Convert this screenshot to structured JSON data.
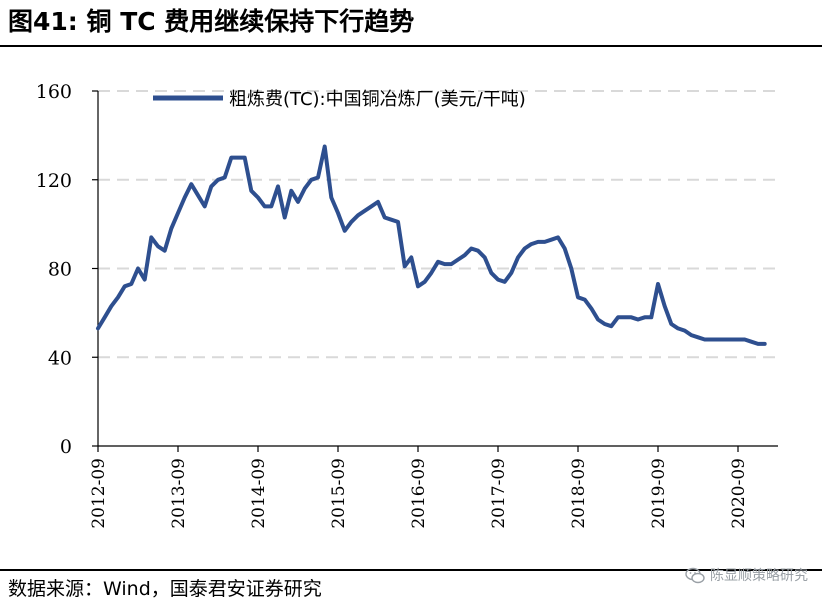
{
  "header": {
    "title": "图41: 铜 TC 费用继续保持下行趋势"
  },
  "footer": {
    "source": "数据来源：Wind，国泰君安证券研究",
    "watermark": "陈显顺策略研究"
  },
  "colors": {
    "series": "#2e4f8f",
    "grid": "#d9d9d9",
    "axis": "#000000"
  },
  "chart_data": {
    "type": "line",
    "title": "",
    "xlabel": "",
    "ylabel": "",
    "ylim": [
      0,
      160
    ],
    "yticks": [
      0,
      40,
      80,
      120,
      160
    ],
    "xticks": [
      "2012-09",
      "2013-09",
      "2014-09",
      "2015-09",
      "2016-09",
      "2017-09",
      "2018-09",
      "2019-09",
      "2020-09"
    ],
    "grid": "horizontal dashed",
    "legend_position": "top",
    "series": [
      {
        "name": "粗炼费(TC):中国铜冶炼厂(美元/干吨)",
        "x": [
          "2012-09",
          "2012-10",
          "2012-11",
          "2012-12",
          "2013-01",
          "2013-02",
          "2013-03",
          "2013-04",
          "2013-05",
          "2013-06",
          "2013-07",
          "2013-08",
          "2013-09",
          "2013-10",
          "2013-11",
          "2013-12",
          "2014-01",
          "2014-02",
          "2014-03",
          "2014-04",
          "2014-05",
          "2014-06",
          "2014-07",
          "2014-08",
          "2014-09",
          "2014-10",
          "2014-11",
          "2014-12",
          "2015-01",
          "2015-02",
          "2015-03",
          "2015-04",
          "2015-05",
          "2015-06",
          "2015-07",
          "2015-08",
          "2015-09",
          "2015-10",
          "2015-11",
          "2015-12",
          "2016-01",
          "2016-02",
          "2016-03",
          "2016-04",
          "2016-05",
          "2016-06",
          "2016-07",
          "2016-08",
          "2016-09",
          "2016-10",
          "2016-11",
          "2016-12",
          "2017-01",
          "2017-02",
          "2017-03",
          "2017-04",
          "2017-05",
          "2017-06",
          "2017-07",
          "2017-08",
          "2017-09",
          "2017-10",
          "2017-11",
          "2017-12",
          "2018-01",
          "2018-02",
          "2018-03",
          "2018-04",
          "2018-05",
          "2018-06",
          "2018-07",
          "2018-08",
          "2018-09",
          "2018-10",
          "2018-11",
          "2018-12",
          "2019-01",
          "2019-02",
          "2019-03",
          "2019-04",
          "2019-05",
          "2019-06",
          "2019-07",
          "2019-08",
          "2019-09",
          "2019-10",
          "2019-11",
          "2019-12",
          "2020-01",
          "2020-02",
          "2020-03",
          "2020-04",
          "2020-05",
          "2020-06",
          "2020-07",
          "2020-08",
          "2020-09",
          "2020-10",
          "2020-11",
          "2020-12",
          "2021-01"
        ],
        "values": [
          53,
          58,
          63,
          67,
          72,
          73,
          80,
          75,
          94,
          90,
          88,
          98,
          105,
          112,
          118,
          113,
          108,
          117,
          120,
          121,
          130,
          130,
          130,
          115,
          112,
          108,
          108,
          117,
          103,
          115,
          110,
          116,
          120,
          121,
          135,
          112,
          105,
          97,
          101,
          104,
          106,
          108,
          110,
          103,
          102,
          101,
          81,
          85,
          72,
          74,
          78,
          83,
          82,
          82,
          84,
          86,
          89,
          88,
          85,
          78,
          75,
          74,
          78,
          85,
          89,
          91,
          92,
          92,
          93,
          94,
          89,
          80,
          67,
          66,
          62,
          57,
          55,
          54,
          58,
          58,
          58,
          57,
          58,
          58,
          73,
          63,
          55,
          53,
          52,
          50,
          49,
          48,
          48,
          48,
          48,
          48,
          48,
          48,
          47,
          46,
          46
        ]
      }
    ]
  }
}
